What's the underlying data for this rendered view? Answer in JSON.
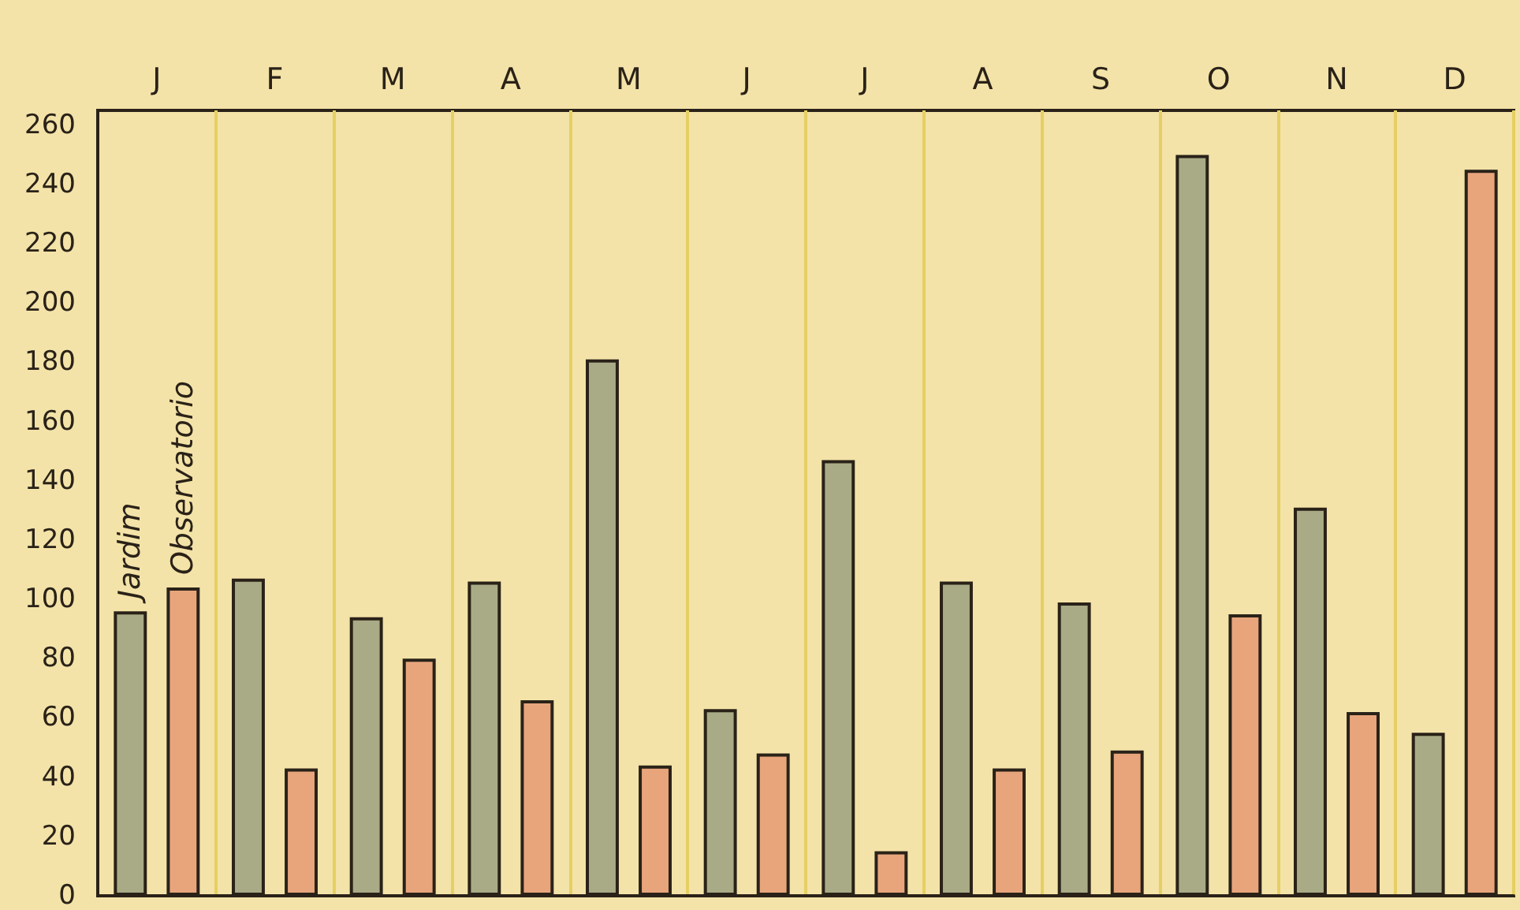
{
  "chart_data": {
    "type": "bar",
    "categories": [
      "J",
      "F",
      "M",
      "A",
      "M",
      "J",
      "J",
      "A",
      "S",
      "O",
      "N",
      "D"
    ],
    "series": [
      {
        "name": "Jardim",
        "color": "#a9ab86",
        "values": [
          96,
          107,
          94,
          106,
          181,
          63,
          147,
          106,
          99,
          250,
          131,
          55
        ]
      },
      {
        "name": "Observatorio",
        "color": "#e8a57c",
        "values": [
          104,
          43,
          80,
          66,
          44,
          48,
          15,
          43,
          49,
          95,
          62,
          245
        ]
      }
    ],
    "ylim": [
      0,
      265
    ],
    "yticks": [
      0,
      20,
      40,
      60,
      80,
      100,
      120,
      140,
      160,
      180,
      200,
      220,
      240,
      260
    ],
    "grid": "x",
    "legend": false
  }
}
